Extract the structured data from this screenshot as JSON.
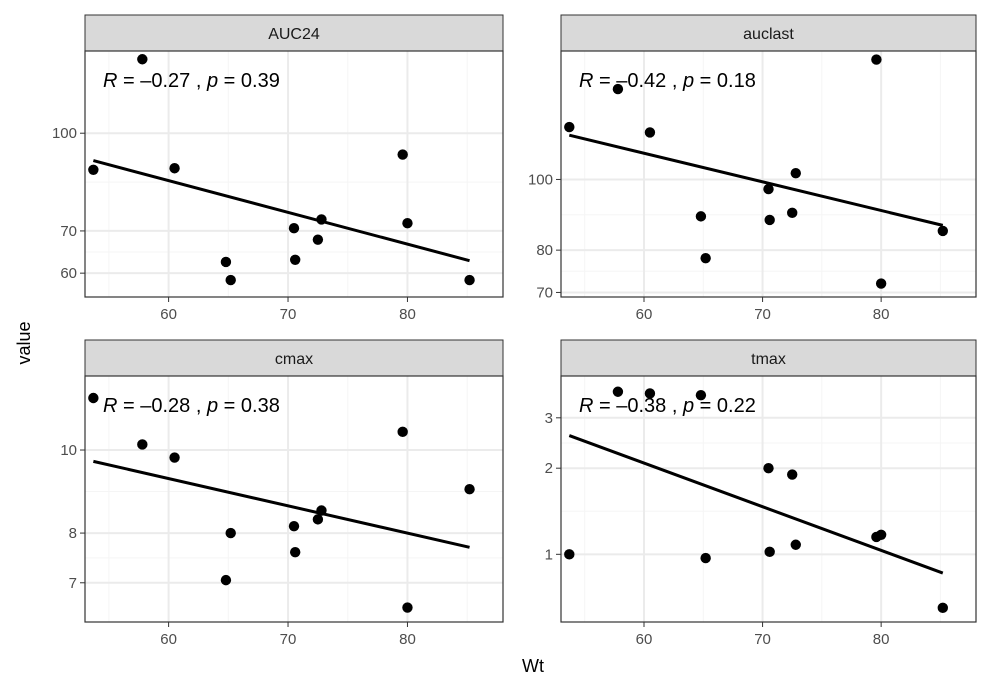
{
  "chart_data": {
    "type": "scatter",
    "layout": "facet-grid 2x2, free y scales, shared x",
    "xlabel": "Wt",
    "ylabel": "value",
    "x_ticks": [
      60,
      70,
      80
    ],
    "x_lim": [
      53,
      88
    ],
    "y_scale": "log",
    "grid": true,
    "smooth": "linear regression line",
    "panels": [
      {
        "name": "AUC24",
        "annotation": {
          "R": "-0.27",
          "p": "0.39"
        },
        "y_ticks": [
          60,
          70,
          100
        ],
        "y_lim": [
          55,
          135
        ],
        "points": [
          [
            53.7,
            87.5
          ],
          [
            57.8,
            131
          ],
          [
            60.5,
            88
          ],
          [
            64.8,
            62.5
          ],
          [
            65.2,
            58.5
          ],
          [
            70.5,
            70.7
          ],
          [
            70.6,
            63
          ],
          [
            72.5,
            67.8
          ],
          [
            72.8,
            73
          ],
          [
            79.6,
            92.5
          ],
          [
            80,
            72
          ],
          [
            85.2,
            58.5
          ]
        ],
        "fit": [
          [
            53.7,
            90.5
          ],
          [
            85.2,
            62.8
          ]
        ]
      },
      {
        "name": "auclast",
        "annotation": {
          "R": "-0.42",
          "p": "0.18"
        },
        "y_ticks": [
          70,
          80,
          100
        ],
        "y_lim": [
          69,
          150
        ],
        "points": [
          [
            53.7,
            118
          ],
          [
            57.8,
            133
          ],
          [
            60.5,
            116
          ],
          [
            64.8,
            89
          ],
          [
            65.2,
            78
          ],
          [
            70.5,
            97
          ],
          [
            70.6,
            88
          ],
          [
            72.5,
            90
          ],
          [
            72.8,
            102
          ],
          [
            79.6,
            146
          ],
          [
            80,
            72
          ],
          [
            85.2,
            85
          ]
        ],
        "fit": [
          [
            53.7,
            115
          ],
          [
            85.2,
            86.5
          ]
        ]
      },
      {
        "name": "cmax",
        "annotation": {
          "R": "-0.28",
          "p": "0.38"
        },
        "y_ticks": [
          7,
          8,
          10
        ],
        "y_lim": [
          6.3,
          12.2
        ],
        "points": [
          [
            53.7,
            11.5
          ],
          [
            57.8,
            10.15
          ],
          [
            60.5,
            9.8
          ],
          [
            64.8,
            7.05
          ],
          [
            65.2,
            8.0
          ],
          [
            70.5,
            8.15
          ],
          [
            70.6,
            7.6
          ],
          [
            72.5,
            8.3
          ],
          [
            72.8,
            8.5
          ],
          [
            79.6,
            10.5
          ],
          [
            80,
            6.55
          ],
          [
            85.2,
            9.0
          ]
        ],
        "fit": [
          [
            53.7,
            9.7
          ],
          [
            85.2,
            7.7
          ]
        ]
      },
      {
        "name": "tmax",
        "annotation": {
          "R": "-0.38",
          "p": "0.22"
        },
        "y_ticks": [
          1,
          2,
          3
        ],
        "y_lim": [
          0.58,
          4.2
        ],
        "points": [
          [
            53.7,
            1.0
          ],
          [
            57.8,
            3.7
          ],
          [
            60.5,
            3.65
          ],
          [
            64.8,
            3.6
          ],
          [
            65.2,
            0.97
          ],
          [
            70.5,
            2.0
          ],
          [
            70.6,
            1.02
          ],
          [
            72.5,
            1.9
          ],
          [
            72.8,
            1.08
          ],
          [
            79.6,
            1.15
          ],
          [
            80,
            1.17
          ],
          [
            85.2,
            0.65
          ]
        ],
        "fit": [
          [
            53.7,
            2.6
          ],
          [
            85.2,
            0.86
          ]
        ]
      }
    ]
  },
  "colors": {
    "strip_fill": "#d9d9d9",
    "panel_border": "#333333",
    "grid_major": "#ebebeb",
    "grid_minor": "#f5f5f5",
    "points": "#000000",
    "fit_line": "#000000"
  }
}
